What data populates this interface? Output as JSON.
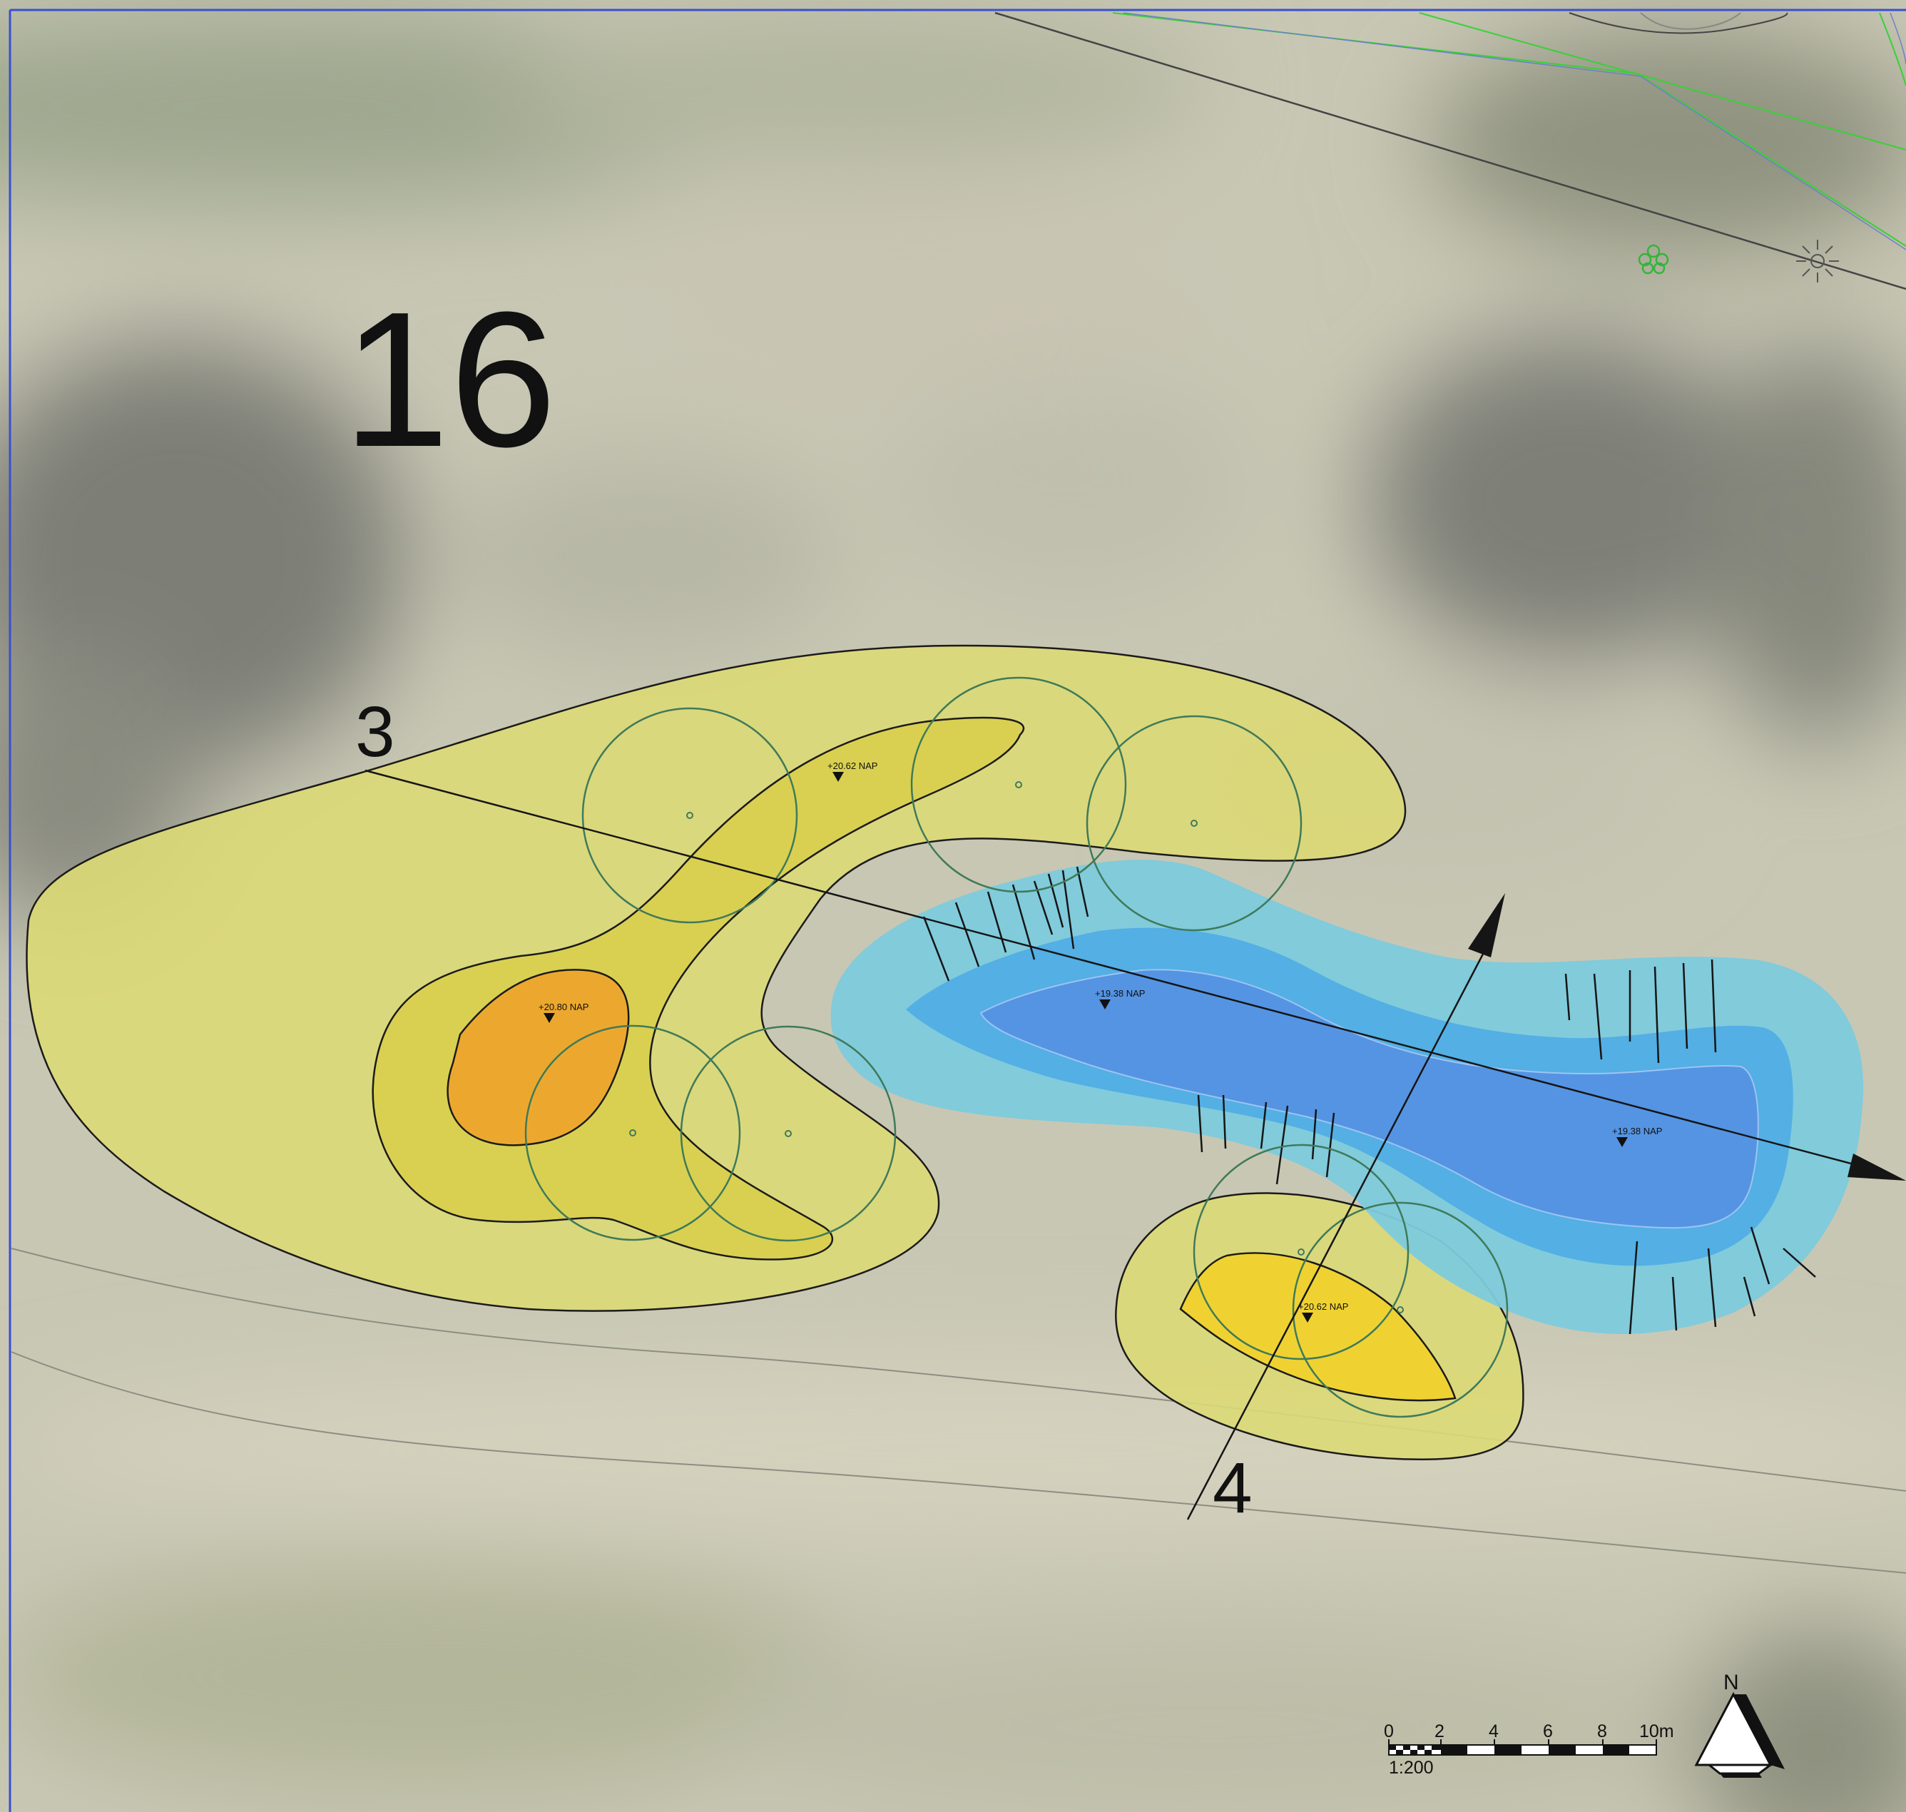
{
  "plan": {
    "number": "16"
  },
  "sections": {
    "line_3": {
      "label": "3"
    },
    "line_4": {
      "label": "4"
    }
  },
  "levels": [
    {
      "id": "orange",
      "text": "+20.80 NAP"
    },
    {
      "id": "yellow-upper",
      "text": "+20.62 NAP"
    },
    {
      "id": "yellow-lower",
      "text": "+20.62 NAP"
    },
    {
      "id": "water-west",
      "text": "+19.38 NAP"
    },
    {
      "id": "water-east",
      "text": "+19.38 NAP"
    }
  ],
  "scale_bar": {
    "ticks": [
      "0",
      "2",
      "4",
      "6",
      "8",
      "10m"
    ],
    "ratio": "1:200"
  },
  "north_arrow": {
    "label": "N"
  },
  "colors": {
    "outer_mound": "#dcd976",
    "inner_mound": "#d8cf4c",
    "high_point": "#eda52c",
    "yellow_peak": "#f0d22e",
    "water_shallow": "#7dcbdd",
    "water_mid": "#50ade5",
    "water_deep": "#5592e2",
    "tree_circle": "#3f7a5a",
    "road_green": "#37d637"
  },
  "icons": [
    "deciduous-tree-icon",
    "lamp-post-icon",
    "elevation-marker-icon",
    "north-arrow-icon",
    "scale-bar"
  ]
}
